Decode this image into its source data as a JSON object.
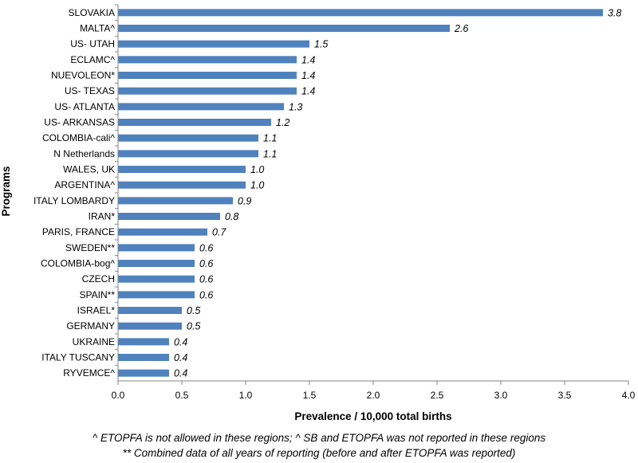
{
  "chart_data": {
    "type": "bar",
    "orientation": "horizontal",
    "categories": [
      "SLOVAKIA",
      "MALTA^",
      "US- UTAH",
      "ECLAMC^",
      "NUEVOLEON*",
      "US- TEXAS",
      "US- ATLANTA",
      "US- ARKANSAS",
      "COLOMBIA-cali^",
      "N Netherlands",
      "WALES, UK",
      "ARGENTINA^",
      "ITALY LOMBARDY",
      "IRAN*",
      "PARIS, FRANCE",
      "SWEDEN**",
      "COLOMBIA-bog^",
      "CZECH",
      "SPAIN**",
      "ISRAEL*",
      "GERMANY",
      "UKRAINE",
      "ITALY TUSCANY",
      "RYVEMCE^"
    ],
    "values": [
      3.8,
      2.6,
      1.5,
      1.4,
      1.4,
      1.4,
      1.3,
      1.2,
      1.1,
      1.1,
      1.0,
      1.0,
      0.9,
      0.8,
      0.7,
      0.6,
      0.6,
      0.6,
      0.6,
      0.5,
      0.5,
      0.4,
      0.4,
      0.4
    ],
    "value_labels": [
      "3.8",
      "2.6",
      "1.5",
      "1.4",
      "1.4",
      "1.4",
      "1.3",
      "1.2",
      "1.1",
      "1.1",
      "1.0",
      "1.0",
      "0.9",
      "0.8",
      "0.7",
      "0.6",
      "0.6",
      "0.6",
      "0.6",
      "0.5",
      "0.5",
      "0.4",
      "0.4",
      "0.4"
    ],
    "xlabel": "Prevalence / 10,000 total births",
    "ylabel": "Programs",
    "xlim": [
      0,
      4.0
    ],
    "xticks": [
      "0.0",
      "0.5",
      "1.0",
      "1.5",
      "2.0",
      "2.5",
      "3.0",
      "3.5",
      "4.0"
    ],
    "grid": false,
    "bar_color": "#4f81bd"
  },
  "footnotes": {
    "line1": "^ ETOPFA is not allowed in these regions; ^ SB and ETOPFA was not reported in these regions",
    "line2": "** Combined data of all years of reporting (before and after ETOPFA was reported)"
  }
}
